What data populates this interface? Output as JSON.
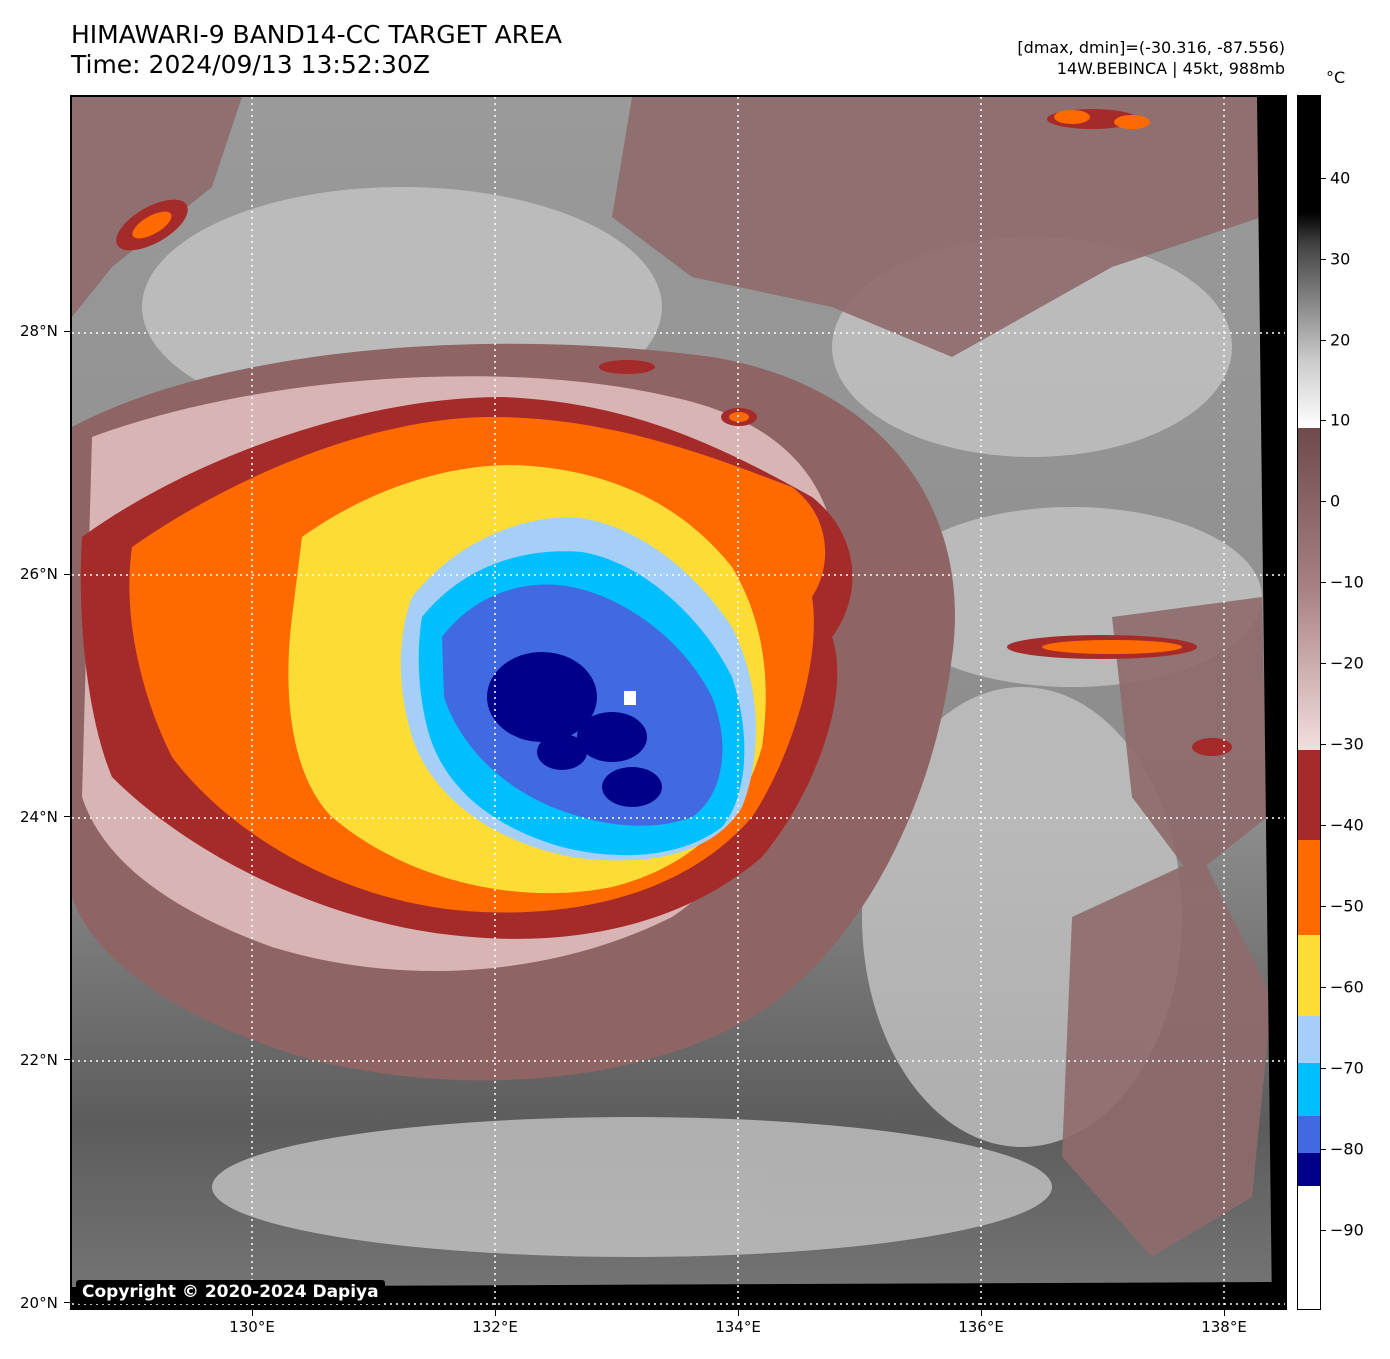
{
  "header": {
    "title": "HIMAWARI-9 BAND14-CC TARGET AREA",
    "time": "Time: 2024/09/13 13:52:30Z",
    "range": "[dmax, dmin]=(-30.316, -87.556)",
    "storm": "14W.BEBINCA | 45kt, 988mb"
  },
  "map": {
    "copyright": "Copyright © 2020-2024 Dapiya",
    "lat_labels": [
      "28°N",
      "26°N",
      "24°N",
      "22°N",
      "20°N"
    ],
    "lon_labels": [
      "130°E",
      "132°E",
      "134°E",
      "136°E",
      "138°E"
    ],
    "gridline_style": "dotted white"
  },
  "colorbar": {
    "unit": "°C",
    "labels": [
      "40",
      "30",
      "20",
      "10",
      "0",
      "−10",
      "−20",
      "−30",
      "−40",
      "−50",
      "−60",
      "−70",
      "−80",
      "−90"
    ],
    "colors": {
      "below_-85": "#ffffff",
      "-85_to_-80": "#00008b",
      "-80_to_-75": "#4169e1",
      "-75_to_-68": "#00bfff",
      "-68_to_-60": "#a6cff7",
      "-60_to_-50": "#fcdc35",
      "-50_to_-38": "#ff6a00",
      "-38_to_-30": "#a52a2a",
      "-30_to_8": "brown-pink ramp",
      "above_8": "grayscale ramp"
    }
  }
}
